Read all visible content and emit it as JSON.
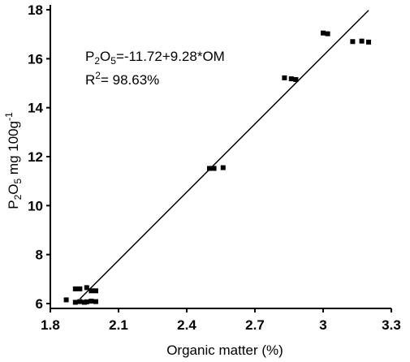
{
  "chart_data": {
    "type": "scatter",
    "xlabel": "Organic matter (%)",
    "ylabel": {
      "base1": "P",
      "sub1": "2",
      "base2": "O",
      "sub2": "5",
      "base3": " mg 100g",
      "sup": "-1"
    },
    "equation": {
      "pre": "P",
      "sub1": "2",
      "mid": "O",
      "sub2": "5",
      "post": "=-11.72+9.28*OM"
    },
    "r2": {
      "pre": "R",
      "sup": "2",
      "post": "= 98.63%"
    },
    "xlim": [
      1.8,
      3.3
    ],
    "ylim": [
      5.8,
      18.2
    ],
    "xticks": [
      "1.8",
      "2.1",
      "2.4",
      "2.7",
      "3",
      "3.3"
    ],
    "xtick_values": [
      1.8,
      2.1,
      2.4,
      2.7,
      3.0,
      3.3
    ],
    "yticks": [
      "6",
      "8",
      "10",
      "12",
      "14",
      "16",
      "18"
    ],
    "ytick_values": [
      6,
      8,
      10,
      12,
      14,
      16,
      18
    ],
    "fit_line": {
      "intercept": -11.72,
      "slope": 9.28,
      "x_range": [
        1.93,
        3.2
      ]
    },
    "points": [
      {
        "x": 1.87,
        "y": 6.15
      },
      {
        "x": 1.91,
        "y": 6.05
      },
      {
        "x": 1.93,
        "y": 6.08
      },
      {
        "x": 1.95,
        "y": 6.05
      },
      {
        "x": 1.96,
        "y": 6.07
      },
      {
        "x": 1.98,
        "y": 6.1
      },
      {
        "x": 2.0,
        "y": 6.08
      },
      {
        "x": 1.91,
        "y": 6.6
      },
      {
        "x": 1.93,
        "y": 6.6
      },
      {
        "x": 1.96,
        "y": 6.65
      },
      {
        "x": 1.98,
        "y": 6.52
      },
      {
        "x": 2.0,
        "y": 6.52
      },
      {
        "x": 2.5,
        "y": 11.52
      },
      {
        "x": 2.52,
        "y": 11.52
      },
      {
        "x": 2.56,
        "y": 11.55
      },
      {
        "x": 2.83,
        "y": 15.22
      },
      {
        "x": 2.86,
        "y": 15.18
      },
      {
        "x": 2.88,
        "y": 15.15
      },
      {
        "x": 3.0,
        "y": 17.05
      },
      {
        "x": 3.02,
        "y": 17.02
      },
      {
        "x": 3.13,
        "y": 16.7
      },
      {
        "x": 3.17,
        "y": 16.72
      },
      {
        "x": 3.2,
        "y": 16.68
      }
    ]
  }
}
